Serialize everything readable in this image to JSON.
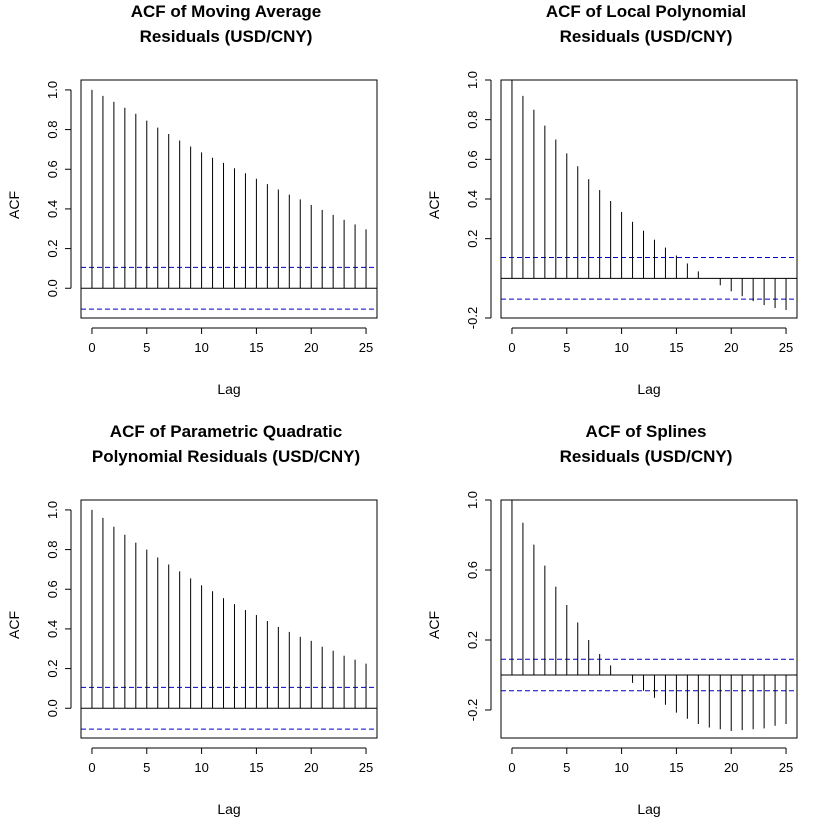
{
  "chart_data": [
    {
      "type": "bar",
      "title": [
        "ACF of Moving Average",
        "Residuals (USD/CNY)"
      ],
      "xlabel": "Lag",
      "ylabel": "ACF",
      "x": [
        0,
        1,
        2,
        3,
        4,
        5,
        6,
        7,
        8,
        9,
        10,
        11,
        12,
        13,
        14,
        15,
        16,
        17,
        18,
        19,
        20,
        21,
        22,
        23,
        24,
        25
      ],
      "values": [
        1.0,
        0.97,
        0.94,
        0.91,
        0.88,
        0.845,
        0.81,
        0.778,
        0.745,
        0.715,
        0.685,
        0.658,
        0.632,
        0.605,
        0.58,
        0.552,
        0.525,
        0.498,
        0.472,
        0.448,
        0.42,
        0.395,
        0.37,
        0.345,
        0.322,
        0.297
      ],
      "conf_limit": 0.105,
      "xlim": [
        -1,
        26
      ],
      "ylim": [
        -0.15,
        1.05
      ],
      "xticks": [
        "0",
        "5",
        "10",
        "15",
        "20",
        "25"
      ],
      "yticks": [
        "0.0",
        "0.2",
        "0.4",
        "0.6",
        "0.8",
        "1.0"
      ],
      "conf_color": "#0000cc"
    },
    {
      "type": "bar",
      "title": [
        "ACF of Local Polynomial",
        "Residuals (USD/CNY)"
      ],
      "xlabel": "Lag",
      "ylabel": "ACF",
      "x": [
        0,
        1,
        2,
        3,
        4,
        5,
        6,
        7,
        8,
        9,
        10,
        11,
        12,
        13,
        14,
        15,
        16,
        17,
        18,
        19,
        20,
        21,
        22,
        23,
        24,
        25
      ],
      "values": [
        1.0,
        0.92,
        0.85,
        0.77,
        0.7,
        0.63,
        0.565,
        0.5,
        0.445,
        0.39,
        0.335,
        0.285,
        0.24,
        0.195,
        0.155,
        0.115,
        0.075,
        0.035,
        0.0,
        -0.035,
        -0.065,
        -0.09,
        -0.115,
        -0.135,
        -0.15,
        -0.16
      ],
      "conf_limit": 0.105,
      "xlim": [
        -1,
        26
      ],
      "ylim": [
        -0.2,
        1.0
      ],
      "xticks": [
        "0",
        "5",
        "10",
        "15",
        "20",
        "25"
      ],
      "yticks": [
        "-0.2",
        "0.2",
        "0.4",
        "0.6",
        "0.8",
        "1.0"
      ],
      "conf_color": "#0000cc"
    },
    {
      "type": "bar",
      "title": [
        "ACF of Parametric Quadratic",
        "Polynomial Residuals (USD/CNY)"
      ],
      "xlabel": "Lag",
      "ylabel": "ACF",
      "x": [
        0,
        1,
        2,
        3,
        4,
        5,
        6,
        7,
        8,
        9,
        10,
        11,
        12,
        13,
        14,
        15,
        16,
        17,
        18,
        19,
        20,
        21,
        22,
        23,
        24,
        25
      ],
      "values": [
        1.0,
        0.96,
        0.915,
        0.875,
        0.835,
        0.8,
        0.76,
        0.725,
        0.69,
        0.655,
        0.62,
        0.59,
        0.555,
        0.525,
        0.495,
        0.47,
        0.44,
        0.41,
        0.385,
        0.36,
        0.34,
        0.31,
        0.29,
        0.265,
        0.245,
        0.225
      ],
      "conf_limit": 0.105,
      "xlim": [
        -1,
        26
      ],
      "ylim": [
        -0.15,
        1.05
      ],
      "xticks": [
        "0",
        "5",
        "10",
        "15",
        "20",
        "25"
      ],
      "yticks": [
        "0.0",
        "0.2",
        "0.4",
        "0.6",
        "0.8",
        "1.0"
      ],
      "conf_color": "#0000cc"
    },
    {
      "type": "bar",
      "title": [
        "ACF of Splines",
        "Residuals (USD/CNY)"
      ],
      "xlabel": "Lag",
      "ylabel": "ACF",
      "x": [
        0,
        1,
        2,
        3,
        4,
        5,
        6,
        7,
        8,
        9,
        10,
        11,
        12,
        13,
        14,
        15,
        16,
        17,
        18,
        19,
        20,
        21,
        22,
        23,
        24,
        25
      ],
      "values": [
        1.0,
        0.87,
        0.745,
        0.625,
        0.505,
        0.4,
        0.3,
        0.2,
        0.12,
        0.055,
        0.0,
        -0.045,
        -0.09,
        -0.13,
        -0.17,
        -0.215,
        -0.25,
        -0.28,
        -0.3,
        -0.31,
        -0.32,
        -0.315,
        -0.31,
        -0.305,
        -0.29,
        -0.28
      ],
      "conf_limit": 0.09,
      "xlim": [
        -1,
        26
      ],
      "ylim": [
        -0.36,
        1.0
      ],
      "xticks": [
        "0",
        "5",
        "10",
        "15",
        "20",
        "25"
      ],
      "yticks": [
        "-0.2",
        "0.2",
        "0.6",
        "1.0"
      ],
      "conf_color": "#0000cc"
    }
  ]
}
